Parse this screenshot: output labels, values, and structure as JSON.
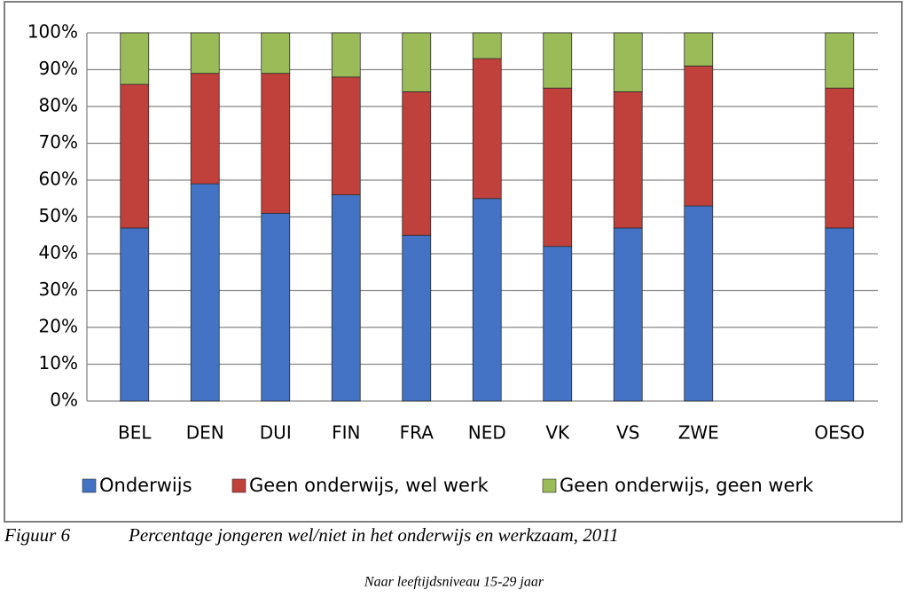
{
  "chart_data": {
    "type": "stacked_bar",
    "figure_label": "Figuur 6",
    "title": "Percentage jongeren wel/niet in het onderwijs en werkzaam, 2011",
    "subtitle": "Naar leeftijdsniveau 15-29 jaar",
    "categories": [
      "BEL",
      "DEN",
      "DUI",
      "FIN",
      "FRA",
      "NED",
      "VK",
      "VS",
      "ZWE",
      null,
      "OESO"
    ],
    "series": [
      {
        "name": "Onderwijs",
        "color": "#4472c4",
        "values": [
          47,
          59,
          51,
          56,
          45,
          55,
          42,
          47,
          53,
          null,
          47
        ]
      },
      {
        "name": "Geen onderwijs, wel werk",
        "color": "#c0403c",
        "values": [
          39,
          30,
          38,
          32,
          39,
          38,
          43,
          37,
          38,
          null,
          38
        ]
      },
      {
        "name": "Geen onderwijs, geen werk",
        "color": "#9bbb59",
        "values": [
          14,
          11,
          11,
          12,
          16,
          7,
          15,
          16,
          9,
          null,
          15
        ]
      }
    ],
    "ylim": [
      0,
      100
    ],
    "yticks": [
      {
        "value": 0,
        "label": "0%"
      },
      {
        "value": 10,
        "label": "10%"
      },
      {
        "value": 20,
        "label": "20%"
      },
      {
        "value": 30,
        "label": "30%"
      },
      {
        "value": 40,
        "label": "40%"
      },
      {
        "value": 50,
        "label": "50%"
      },
      {
        "value": 60,
        "label": "60%"
      },
      {
        "value": 70,
        "label": "70%"
      },
      {
        "value": 80,
        "label": "80%"
      },
      {
        "value": 90,
        "label": "90%"
      },
      {
        "value": 100,
        "label": "100%"
      }
    ],
    "grid": true,
    "legend": "bottom"
  }
}
